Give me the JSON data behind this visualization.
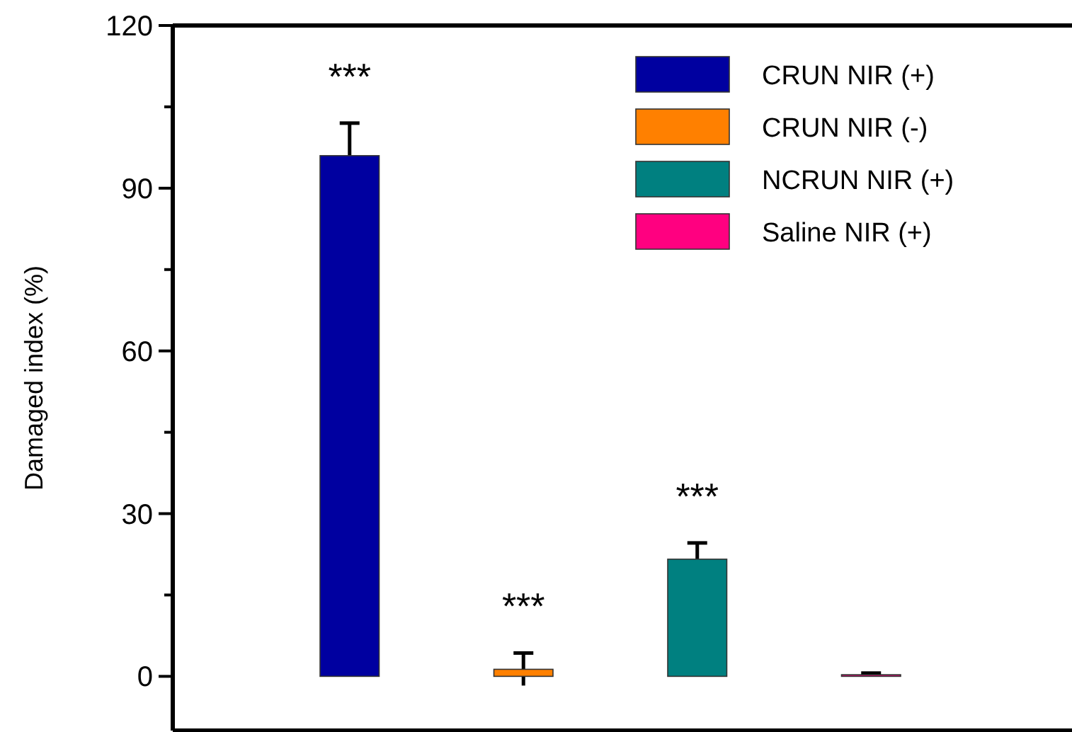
{
  "chart_data": {
    "type": "bar",
    "ylabel": "Damaged index (%)",
    "categories": [
      null,
      null,
      null,
      null
    ],
    "series": [
      {
        "name": "CRUN NIR (+)",
        "color": "#0000a0",
        "values": [
          96,
          null,
          null,
          null
        ],
        "errors": [
          6,
          null,
          null,
          null
        ]
      },
      {
        "name": "CRUN NIR (-)",
        "color": "#ff8000",
        "values": [
          null,
          1.3,
          null,
          null
        ],
        "errors": [
          null,
          3,
          null,
          null
        ]
      },
      {
        "name": "NCRUN NIR (+)",
        "color": "#008080",
        "values": [
          null,
          null,
          21.6,
          null
        ],
        "errors": [
          null,
          null,
          3,
          null
        ]
      },
      {
        "name": "Saline NIR (+)",
        "color": "#ff0080",
        "values": [
          null,
          null,
          null,
          0.3
        ],
        "errors": [
          null,
          null,
          null,
          0.3
        ]
      }
    ],
    "ylim": [
      -10,
      120
    ],
    "yticks": [
      0,
      {
        "value": 15,
        "label": null
      },
      30,
      {
        "value": 45,
        "label": null
      },
      60,
      {
        "value": 75,
        "label": null
      },
      90,
      {
        "value": 105,
        "label": null
      },
      120
    ],
    "annotations": [
      "***",
      "***",
      "***"
    ],
    "legend": "top right",
    "grid": false
  }
}
